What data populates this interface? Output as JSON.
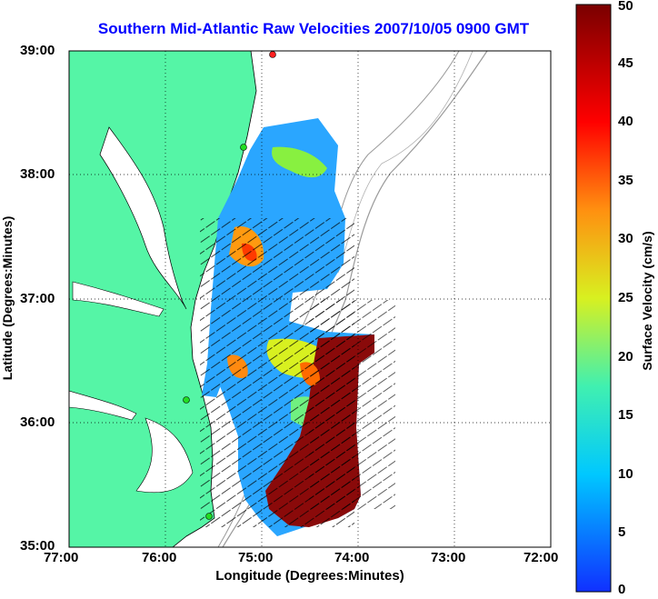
{
  "title": "Southern Mid-Atlantic Raw Velocities 2007/10/05 0900 GMT",
  "xlabel": "Longitude (Degrees:Minutes)",
  "ylabel": "Latitude (Degrees:Minutes)",
  "colorbar": {
    "label": "Surface Velocity (cm/s)",
    "ticks": [
      "0",
      "5",
      "10",
      "15",
      "20",
      "25",
      "30",
      "35",
      "40",
      "45",
      "50"
    ],
    "range": [
      0,
      50
    ]
  },
  "x_ticks": [
    "77:00",
    "76:00",
    "75:00",
    "74:00",
    "73:00",
    "72:00"
  ],
  "y_ticks": [
    "39:00",
    "38:00",
    "37:00",
    "36:00",
    "35:00"
  ],
  "colors": {
    "land": "#55f5a6",
    "title": "#0000ff",
    "station": "#22dd22"
  }
}
